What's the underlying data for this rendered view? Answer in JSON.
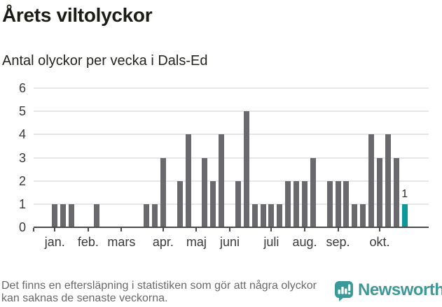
{
  "title": "Årets viltolyckor",
  "subtitle": "Antal olyckor per vecka i Dals-Ed",
  "footer": {
    "note": "Det finns en eftersläpning i statistiken som gör att några olyckor kan saknas de senaste veckorna.",
    "brand": "Newsworthy"
  },
  "colors": {
    "bar": "#6a6a6e",
    "highlight": "#0d989a",
    "gridline": "#e7e7e9",
    "axis": "#4b4b4b",
    "brand_teal": "#3e9897"
  },
  "chart_data": {
    "type": "bar",
    "title": "Årets viltolyckor",
    "subtitle": "Antal olyckor per vecka i Dals-Ed",
    "x_description": "veckor (weekly bars, January through late October)",
    "values": [
      1,
      1,
      1,
      0,
      0,
      1,
      0,
      0,
      0,
      0,
      0,
      1,
      1,
      3,
      0,
      2,
      4,
      0,
      3,
      2,
      4,
      0,
      2,
      5,
      1,
      1,
      1,
      1,
      2,
      2,
      2,
      3,
      0,
      2,
      2,
      2,
      1,
      1,
      4,
      3,
      4,
      3,
      1
    ],
    "highlight_index": 42,
    "annotation": {
      "text": "1",
      "week": 42
    },
    "y_ticks": [
      0,
      1,
      2,
      3,
      4,
      5,
      6
    ],
    "ylim": [
      0,
      6
    ],
    "grid": true,
    "legend": "none",
    "month_ticks": [
      {
        "label": "jan.",
        "week": 0
      },
      {
        "label": "feb.",
        "week": 4
      },
      {
        "label": "mars",
        "week": 8
      },
      {
        "label": "apr.",
        "week": 13
      },
      {
        "label": "maj",
        "week": 17
      },
      {
        "label": "juni",
        "week": 21
      },
      {
        "label": "juli",
        "week": 26
      },
      {
        "label": "aug.",
        "week": 30
      },
      {
        "label": "sep.",
        "week": 34
      },
      {
        "label": "okt.",
        "week": 39
      }
    ]
  }
}
